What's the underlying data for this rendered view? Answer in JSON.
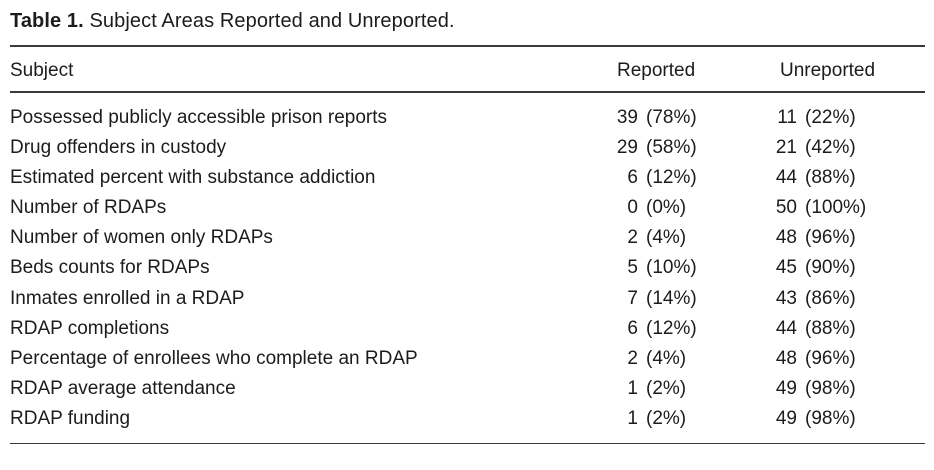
{
  "title": {
    "label": "Table 1.",
    "text": "Subject Areas Reported and Unreported."
  },
  "table": {
    "headers": {
      "subject": "Subject",
      "reported": "Reported",
      "unreported": "Unreported"
    },
    "rows": [
      {
        "subject": "Possessed publicly accessible prison reports",
        "reported_count": "39",
        "reported_pct": "(78%)",
        "unreported_count": "11",
        "unreported_pct": "(22%)"
      },
      {
        "subject": "Drug offenders in custody",
        "reported_count": "29",
        "reported_pct": "(58%)",
        "unreported_count": "21",
        "unreported_pct": "(42%)"
      },
      {
        "subject": "Estimated percent with substance addiction",
        "reported_count": "6",
        "reported_pct": "(12%)",
        "unreported_count": "44",
        "unreported_pct": "(88%)"
      },
      {
        "subject": "Number of RDAPs",
        "reported_count": "0",
        "reported_pct": "(0%)",
        "unreported_count": "50",
        "unreported_pct": "(100%)"
      },
      {
        "subject": "Number of women only RDAPs",
        "reported_count": "2",
        "reported_pct": "(4%)",
        "unreported_count": "48",
        "unreported_pct": "(96%)"
      },
      {
        "subject": "Beds counts for RDAPs",
        "reported_count": "5",
        "reported_pct": "(10%)",
        "unreported_count": "45",
        "unreported_pct": "(90%)"
      },
      {
        "subject": "Inmates enrolled in a RDAP",
        "reported_count": "7",
        "reported_pct": "(14%)",
        "unreported_count": "43",
        "unreported_pct": "(86%)"
      },
      {
        "subject": "RDAP completions",
        "reported_count": "6",
        "reported_pct": "(12%)",
        "unreported_count": "44",
        "unreported_pct": "(88%)"
      },
      {
        "subject": "Percentage of enrollees who complete an RDAP",
        "reported_count": "2",
        "reported_pct": "(4%)",
        "unreported_count": "48",
        "unreported_pct": "(96%)"
      },
      {
        "subject": "RDAP average attendance",
        "reported_count": "1",
        "reported_pct": "(2%)",
        "unreported_count": "49",
        "unreported_pct": "(98%)"
      },
      {
        "subject": "RDAP funding",
        "reported_count": "1",
        "reported_pct": "(2%)",
        "unreported_count": "49",
        "unreported_pct": "(98%)"
      }
    ]
  },
  "colors": {
    "text": "#1d1b1c",
    "rule": "#3a3a3a",
    "background": "#ffffff"
  }
}
